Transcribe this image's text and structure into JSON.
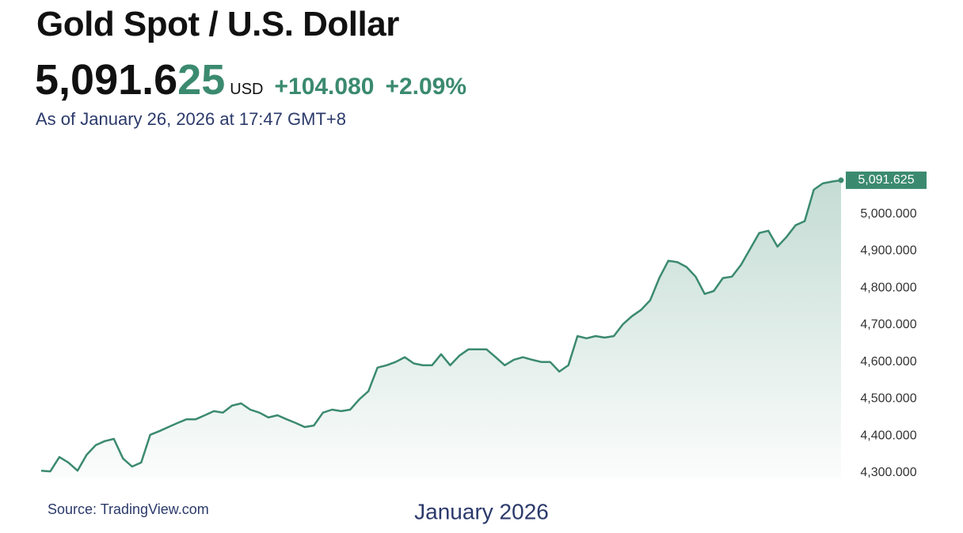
{
  "header": {
    "title": "Gold Spot / U.S. Dollar",
    "price_main": "5,091.6",
    "price_tail": "25",
    "currency": "USD",
    "change": "+104.080",
    "change_percent": "+2.09%",
    "as_of": "As of January 26, 2026 at 17:47 GMT+8",
    "source": "Source: TradingView.com"
  },
  "chart_data": {
    "type": "line",
    "area": true,
    "color": "#3b8a6f",
    "x_label": "January 2026",
    "values": [
      4306,
      4304,
      4343,
      4328,
      4306,
      4349,
      4375,
      4386,
      4392,
      4339,
      4317,
      4328,
      4403,
      4413,
      4424,
      4435,
      4445,
      4445,
      4456,
      4467,
      4463,
      4482,
      4488,
      4471,
      4463,
      4450,
      4456,
      4445,
      4435,
      4424,
      4428,
      4463,
      4471,
      4467,
      4471,
      4499,
      4521,
      4585,
      4591,
      4600,
      4613,
      4596,
      4591,
      4591,
      4621,
      4591,
      4617,
      4634,
      4634,
      4634,
      4613,
      4591,
      4606,
      4613,
      4606,
      4600,
      4600,
      4574,
      4591,
      4670,
      4664,
      4670,
      4666,
      4670,
      4702,
      4724,
      4741,
      4767,
      4827,
      4874,
      4870,
      4857,
      4831,
      4784,
      4792,
      4827,
      4831,
      4863,
      4906,
      4949,
      4955,
      4912,
      4938,
      4970,
      4981,
      5066,
      5083,
      5088,
      5091.625
    ],
    "last_value": {
      "value": 5091.625,
      "label": "5,091.625"
    },
    "ylim": [
      4285,
      5100
    ],
    "yticks": [
      {
        "value": 4300,
        "label": "4,300.000"
      },
      {
        "value": 4400,
        "label": "4,400.000"
      },
      {
        "value": 4500,
        "label": "4,500.000"
      },
      {
        "value": 4600,
        "label": "4,600.000"
      },
      {
        "value": 4700,
        "label": "4,700.000"
      },
      {
        "value": 4800,
        "label": "4,800.000"
      },
      {
        "value": 4900,
        "label": "4,900.000"
      },
      {
        "value": 5000,
        "label": "5,000.000"
      }
    ]
  }
}
